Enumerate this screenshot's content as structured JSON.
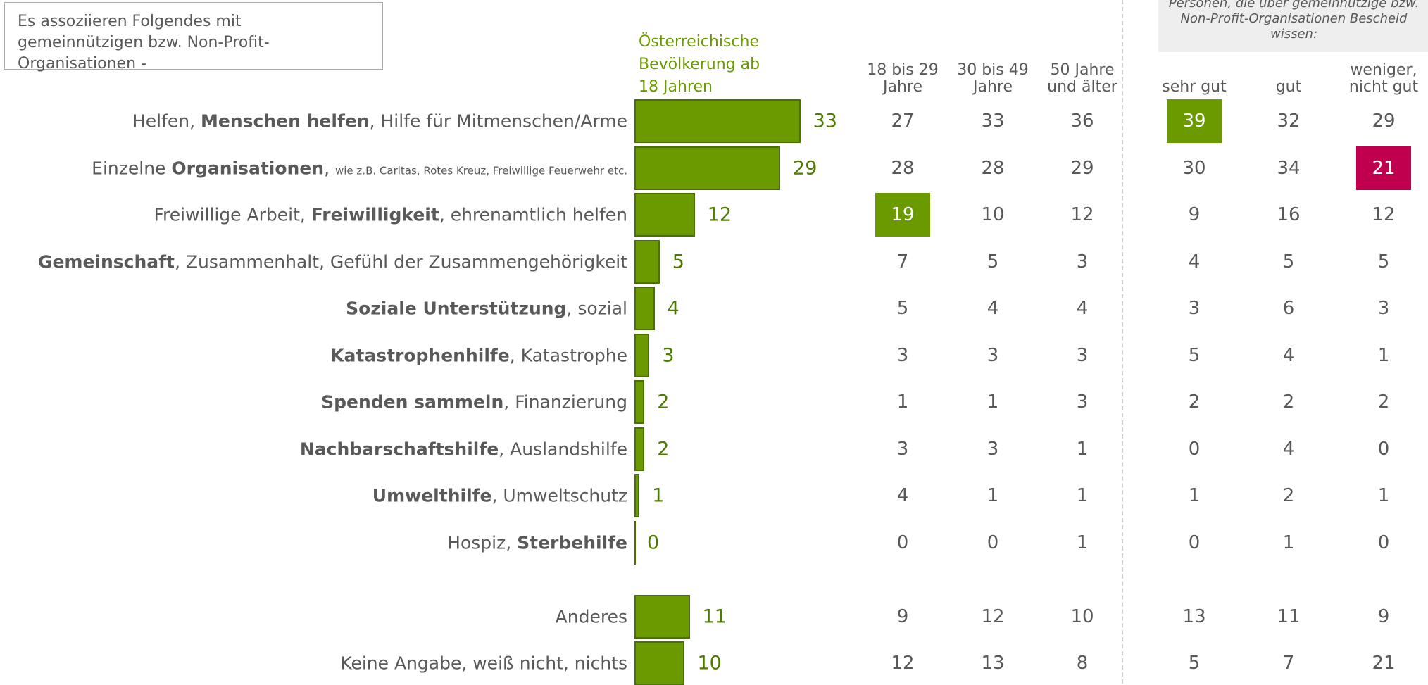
{
  "intro": "Es assoziieren Folgendes mit gemeinnützigen bzw. Non-Profit-Organisationen -",
  "chart_data": {
    "type": "bar",
    "note": "Personen, die über gemeinnützige bzw. Non-Profit-Organisationen Bescheid wissen:",
    "categories": [
      [
        {
          "text": "Helfen, "
        },
        {
          "text": "Menschen helfen",
          "bold": true
        },
        {
          "text": ", Hilfe für Mitmenschen/Arme"
        }
      ],
      [
        {
          "text": "Einzelne "
        },
        {
          "text": "Organisationen",
          "bold": true
        },
        {
          "text": ", "
        },
        {
          "text": "wie z.B. Caritas, Rotes Kreuz, Freiwillige Feuerwehr etc.",
          "small": true
        }
      ],
      [
        {
          "text": "Freiwillige Arbeit, "
        },
        {
          "text": "Freiwilligkeit",
          "bold": true
        },
        {
          "text": ", ehrenamtlich helfen"
        }
      ],
      [
        {
          "text": "Gemeinschaft",
          "bold": true
        },
        {
          "text": ", Zusammenhalt, Gefühl der Zusammengehörigkeit"
        }
      ],
      [
        {
          "text": "Soziale Unterstützung",
          "bold": true
        },
        {
          "text": ", sozial"
        }
      ],
      [
        {
          "text": "Katastrophenhilfe",
          "bold": true
        },
        {
          "text": ", Katastrophe"
        }
      ],
      [
        {
          "text": "Spenden sammeln",
          "bold": true
        },
        {
          "text": ", Finanzierung"
        }
      ],
      [
        {
          "text": "Nachbarschaftshilfe",
          "bold": true
        },
        {
          "text": ", Auslandshilfe"
        }
      ],
      [
        {
          "text": "Umwelthilfe",
          "bold": true
        },
        {
          "text": ", Umweltschutz"
        }
      ],
      [
        {
          "text": "Hospiz, "
        },
        {
          "text": "Sterbehilfe",
          "bold": true
        }
      ],
      [
        {
          "text": "Anderes"
        }
      ],
      [
        {
          "text": "Keine Angabe, weiß nicht, nichts"
        }
      ]
    ],
    "series": [
      {
        "name": "Österreichische Bevölkerung ab 18 Jahren",
        "color": "#6a9a00",
        "values": [
          33,
          29,
          12,
          5,
          4,
          3,
          2,
          2,
          1,
          0,
          11,
          10
        ]
      },
      {
        "name": "18 bis 29 Jahre",
        "values": [
          27,
          28,
          19,
          7,
          5,
          3,
          1,
          3,
          4,
          0,
          9,
          12
        ]
      },
      {
        "name": "30 bis 49 Jahre",
        "values": [
          33,
          28,
          10,
          5,
          4,
          3,
          1,
          3,
          1,
          0,
          12,
          13
        ]
      },
      {
        "name": "50 Jahre und älter",
        "values": [
          36,
          29,
          12,
          3,
          4,
          3,
          3,
          1,
          1,
          1,
          10,
          8
        ]
      },
      {
        "name": "sehr gut",
        "values": [
          39,
          30,
          9,
          4,
          3,
          5,
          2,
          0,
          1,
          0,
          13,
          5
        ]
      },
      {
        "name": "gut",
        "values": [
          32,
          34,
          16,
          5,
          6,
          4,
          2,
          4,
          2,
          1,
          11,
          7
        ]
      },
      {
        "name": "weniger, nicht gut",
        "values": [
          29,
          21,
          12,
          5,
          3,
          1,
          2,
          0,
          1,
          0,
          9,
          21
        ]
      }
    ],
    "highlights": [
      {
        "series": 1,
        "index": 2,
        "color": "#6a9a00"
      },
      {
        "series": 4,
        "index": 0,
        "color": "#6a9a00"
      },
      {
        "series": 6,
        "index": 1,
        "color": "#c0004f"
      }
    ]
  }
}
